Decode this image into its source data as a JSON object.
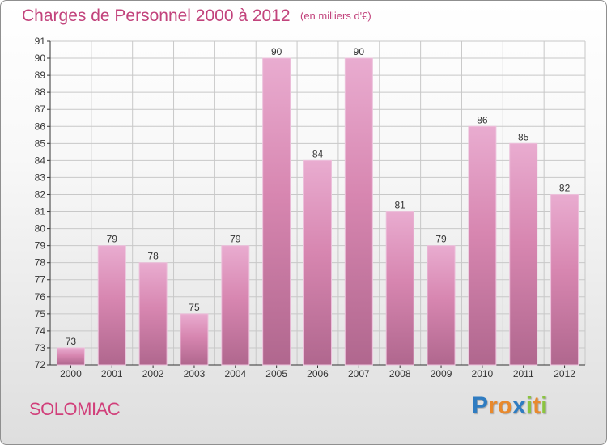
{
  "header": {
    "title": "Charges de Personnel 2000 à 2012",
    "subtitle": "(en milliers d'€)"
  },
  "footer": {
    "location": "SOLOMIAC",
    "logo": {
      "letters": [
        "P",
        "r",
        "o",
        "x",
        "i",
        "t",
        "i"
      ],
      "colors": [
        "#2f7cc1",
        "#e8892d",
        "#e8892d",
        "#2f7cc1",
        "#8ac43f",
        "#e8892d",
        "#8ac43f"
      ]
    }
  },
  "colors": {
    "bar": "#d786b0",
    "bar_light": "#e9acd0",
    "bar_dark": "#b0678e",
    "bar_edge": "#ecc0db",
    "text": "#c2437c",
    "axis": "#333333",
    "grid": "#c8c8c8"
  },
  "chart_data": {
    "type": "bar",
    "categories": [
      "2000",
      "2001",
      "2002",
      "2003",
      "2004",
      "2005",
      "2006",
      "2007",
      "2008",
      "2009",
      "2010",
      "2011",
      "2012"
    ],
    "values": [
      73,
      79,
      78,
      75,
      79,
      90,
      84,
      90,
      81,
      79,
      86,
      85,
      82
    ],
    "ylim": [
      72,
      91
    ],
    "yticks": [
      72,
      73,
      74,
      75,
      76,
      77,
      78,
      79,
      80,
      81,
      82,
      83,
      84,
      85,
      86,
      87,
      88,
      89,
      90,
      91
    ],
    "grid": true,
    "data_labels": true
  }
}
